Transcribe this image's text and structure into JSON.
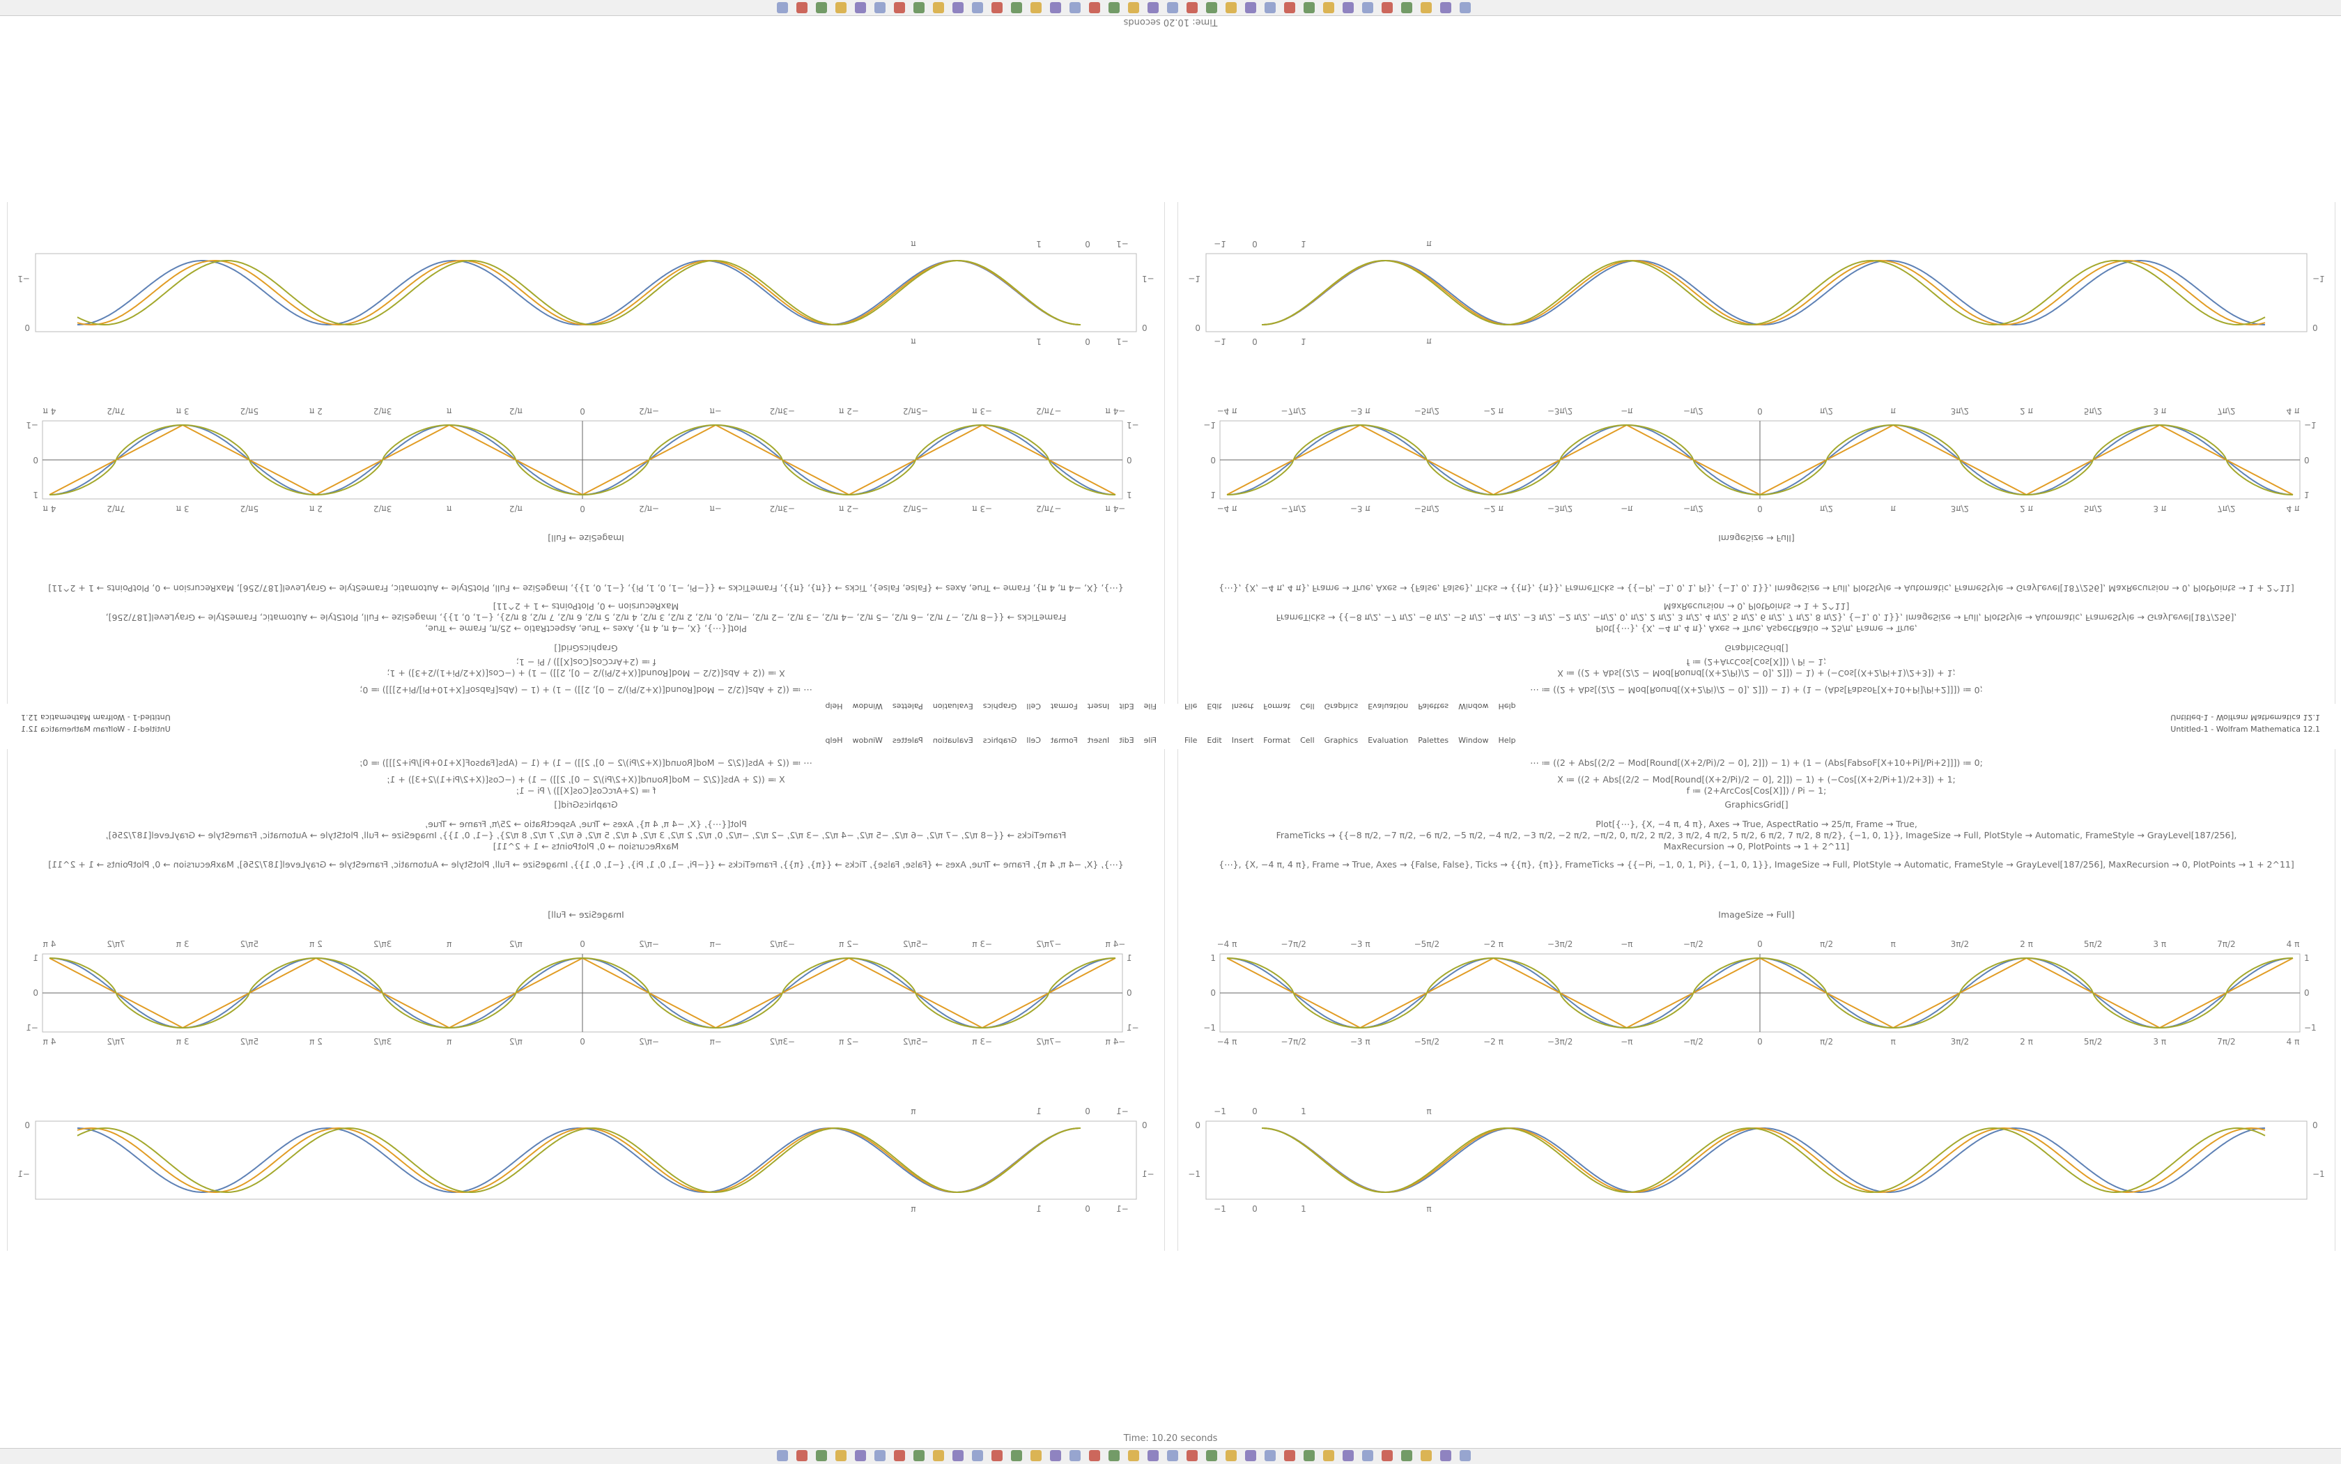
{
  "window_title": "Untitled-1 - Wolfram Mathematica 12.1",
  "menu": [
    "File",
    "Edit",
    "Insert",
    "Format",
    "Cell",
    "Graphics",
    "Evaluation",
    "Palettes",
    "Window",
    "Help"
  ],
  "status": "Time: 10.20 seconds",
  "code_lines": [
    "⋯ ≔ ((2 + Abs[(2/2 − Mod[Round[(X+2/Pi)/2 − 0], 2]]) − 1) + (1 − (Abs[FabsoF[X+10+Pi]/Pi+2]]]) ≔ 0;",
    "X ≔ ((2 + Abs[(2/2 − Mod[Round[(X+2/Pi)/2 − 0], 2]]) − 1) + (−Cos[(X+2/Pi+1)/2+3]) + 1;",
    "f ≔ (2+ArcCos[Cos[X]]) / Pi − 1;",
    "GraphicsGrid[]",
    "Plot[{⋯}, {X, −4 π, 4 π}, Axes → True, AspectRatio → 25/π, Frame → True,",
    "FrameTicks → {{−8 π/2, −7 π/2, −6 π/2, −5 π/2, −4 π/2, −3 π/2, −2 π/2, −π/2, 0, π/2, 2 π/2, 3 π/2, 4 π/2, 5 π/2, 6 π/2, 7 π/2, 8 π/2}, {−1, 0, 1}}, ImageSize → Full, PlotStyle → Automatic, FrameStyle → GrayLevel[187/256],",
    "MaxRecursion → 0, PlotPoints → 1 + 2^11]",
    "{⋯}, {X, −4 π, 4 π}, Frame → True, Axes → {False, False}, Ticks → {{π}, {π}}, FrameTicks → {{−Pi, −1, 0, 1, Pi}, {−1, 0, 1}}, ImageSize → Full, PlotStyle → Automatic, FrameStyle → GrayLevel[187/256], MaxRecursion → 0, PlotPoints → 1 + 2^11]",
    "ImageSize → Full]"
  ],
  "plot_a_ticks": [
    "−4 π",
    "−7π/2",
    "−3 π",
    "−5π/2",
    "−2 π",
    "−3π/2",
    "−π",
    "−π/2",
    "0",
    "π/2",
    "π",
    "3π/2",
    "2 π",
    "5π/2",
    "3 π",
    "7π/2",
    "4 π"
  ],
  "plot_a_yticks": [
    "1",
    "0",
    "−1"
  ],
  "plot_b_ticks": [
    "−1",
    "0",
    "1",
    "π"
  ],
  "plot_b_yticks": [
    "0",
    "−1"
  ]
}
